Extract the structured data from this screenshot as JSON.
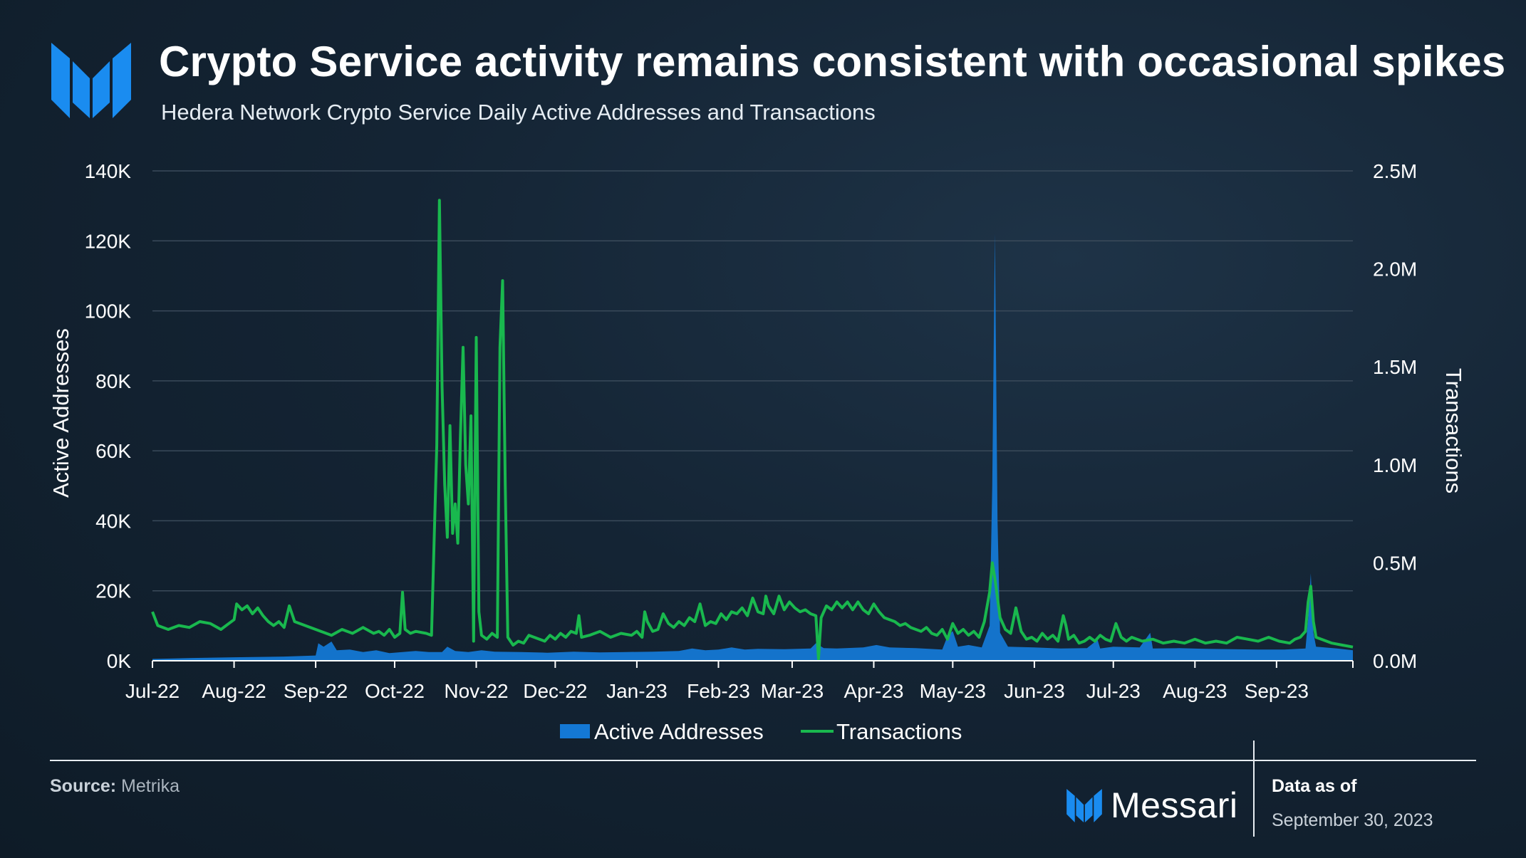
{
  "header": {
    "title": "Crypto Service activity remains consistent with occasional spikes",
    "subtitle": "Hedera Network Crypto Service Daily Active Addresses and Transactions"
  },
  "colors": {
    "active_addresses": "#1478d4",
    "transactions": "#19b84e",
    "grid": "#3a4a5a",
    "text": "#ffffff"
  },
  "chart_data": {
    "type": "area+line",
    "title": "Hedera Network Crypto Service Daily Active Addresses and Transactions",
    "xlabel": "",
    "ylabel_left": "Active Addresses",
    "ylabel_right": "Transactions",
    "ylim_left": [
      0,
      140000
    ],
    "ylim_right": [
      0,
      2500000
    ],
    "yticks_left": [
      "0K",
      "20K",
      "40K",
      "60K",
      "80K",
      "100K",
      "120K",
      "140K"
    ],
    "yticks_right": [
      "0.0M",
      "0.5M",
      "1.0M",
      "1.5M",
      "2.0M",
      "2.5M"
    ],
    "x_range_days": [
      0,
      456
    ],
    "x_tick_days": [
      0,
      31,
      62,
      92,
      123,
      153,
      184,
      215,
      243,
      274,
      304,
      335,
      365,
      396,
      427
    ],
    "x_tick_labels": [
      "Jul-22",
      "Aug-22",
      "Sep-22",
      "Oct-22",
      "Nov-22",
      "Dec-22",
      "Jan-23",
      "Feb-23",
      "Mar-23",
      "Apr-23",
      "May-23",
      "Jun-23",
      "Jul-23",
      "Aug-23",
      "Sep-23"
    ],
    "grid": true,
    "legend_position": "bottom-center",
    "series": [
      {
        "name": "Active Addresses",
        "kind": "area",
        "axis": "left",
        "points": [
          [
            0,
            500
          ],
          [
            15,
            800
          ],
          [
            31,
            1000
          ],
          [
            50,
            1200
          ],
          [
            62,
            1500
          ],
          [
            63,
            5000
          ],
          [
            65,
            4000
          ],
          [
            68,
            5500
          ],
          [
            70,
            3000
          ],
          [
            75,
            3200
          ],
          [
            80,
            2500
          ],
          [
            85,
            3000
          ],
          [
            90,
            2200
          ],
          [
            95,
            2500
          ],
          [
            100,
            2800
          ],
          [
            105,
            2500
          ],
          [
            110,
            2500
          ],
          [
            112,
            4000
          ],
          [
            115,
            2800
          ],
          [
            120,
            2500
          ],
          [
            125,
            3000
          ],
          [
            130,
            2600
          ],
          [
            140,
            2500
          ],
          [
            150,
            2300
          ],
          [
            160,
            2600
          ],
          [
            170,
            2400
          ],
          [
            180,
            2500
          ],
          [
            190,
            2600
          ],
          [
            200,
            2800
          ],
          [
            205,
            3500
          ],
          [
            210,
            3000
          ],
          [
            215,
            3200
          ],
          [
            220,
            3800
          ],
          [
            225,
            3200
          ],
          [
            230,
            3400
          ],
          [
            240,
            3300
          ],
          [
            250,
            3500
          ],
          [
            252,
            5000
          ],
          [
            255,
            3600
          ],
          [
            260,
            3500
          ],
          [
            270,
            3800
          ],
          [
            275,
            4500
          ],
          [
            280,
            3800
          ],
          [
            290,
            3600
          ],
          [
            300,
            3200
          ],
          [
            302,
            7000
          ],
          [
            304,
            8500
          ],
          [
            306,
            4000
          ],
          [
            310,
            4500
          ],
          [
            315,
            3800
          ],
          [
            318,
            10000
          ],
          [
            319,
            50000
          ],
          [
            320,
            122000
          ],
          [
            321,
            40000
          ],
          [
            322,
            8000
          ],
          [
            325,
            4000
          ],
          [
            335,
            3800
          ],
          [
            345,
            3500
          ],
          [
            355,
            3600
          ],
          [
            359,
            6000
          ],
          [
            360,
            3500
          ],
          [
            365,
            4000
          ],
          [
            375,
            3800
          ],
          [
            379,
            8000
          ],
          [
            380,
            3500
          ],
          [
            390,
            3600
          ],
          [
            400,
            3400
          ],
          [
            410,
            3300
          ],
          [
            420,
            3200
          ],
          [
            430,
            3200
          ],
          [
            438,
            3500
          ],
          [
            439,
            12000
          ],
          [
            440,
            25000
          ],
          [
            441,
            8000
          ],
          [
            442,
            4000
          ],
          [
            450,
            3500
          ],
          [
            456,
            3000
          ]
        ]
      },
      {
        "name": "Transactions",
        "kind": "line",
        "axis": "right",
        "points": [
          [
            0,
            250000
          ],
          [
            2,
            180000
          ],
          [
            6,
            160000
          ],
          [
            10,
            180000
          ],
          [
            14,
            170000
          ],
          [
            18,
            200000
          ],
          [
            22,
            190000
          ],
          [
            26,
            160000
          ],
          [
            29,
            190000
          ],
          [
            31,
            210000
          ],
          [
            32,
            290000
          ],
          [
            34,
            260000
          ],
          [
            36,
            280000
          ],
          [
            38,
            240000
          ],
          [
            40,
            270000
          ],
          [
            42,
            230000
          ],
          [
            44,
            200000
          ],
          [
            46,
            180000
          ],
          [
            48,
            200000
          ],
          [
            50,
            170000
          ],
          [
            52,
            280000
          ],
          [
            54,
            200000
          ],
          [
            56,
            190000
          ],
          [
            60,
            170000
          ],
          [
            64,
            150000
          ],
          [
            68,
            130000
          ],
          [
            72,
            160000
          ],
          [
            76,
            140000
          ],
          [
            80,
            170000
          ],
          [
            84,
            140000
          ],
          [
            86,
            150000
          ],
          [
            88,
            130000
          ],
          [
            90,
            160000
          ],
          [
            92,
            120000
          ],
          [
            94,
            140000
          ],
          [
            95,
            350000
          ],
          [
            96,
            160000
          ],
          [
            98,
            140000
          ],
          [
            100,
            150000
          ],
          [
            104,
            140000
          ],
          [
            106,
            130000
          ],
          [
            108,
            1100000
          ],
          [
            109,
            2350000
          ],
          [
            110,
            1400000
          ],
          [
            111,
            900000
          ],
          [
            112,
            630000
          ],
          [
            113,
            1200000
          ],
          [
            114,
            650000
          ],
          [
            115,
            800000
          ],
          [
            116,
            600000
          ],
          [
            117,
            1150000
          ],
          [
            118,
            1600000
          ],
          [
            119,
            1000000
          ],
          [
            120,
            800000
          ],
          [
            121,
            1250000
          ],
          [
            122,
            100000
          ],
          [
            123,
            1650000
          ],
          [
            124,
            250000
          ],
          [
            125,
            130000
          ],
          [
            127,
            110000
          ],
          [
            129,
            140000
          ],
          [
            131,
            120000
          ],
          [
            132,
            1600000
          ],
          [
            133,
            1940000
          ],
          [
            134,
            900000
          ],
          [
            135,
            120000
          ],
          [
            137,
            80000
          ],
          [
            139,
            100000
          ],
          [
            141,
            90000
          ],
          [
            143,
            130000
          ],
          [
            145,
            120000
          ],
          [
            147,
            110000
          ],
          [
            149,
            100000
          ],
          [
            151,
            130000
          ],
          [
            153,
            110000
          ],
          [
            155,
            140000
          ],
          [
            157,
            120000
          ],
          [
            159,
            150000
          ],
          [
            161,
            140000
          ],
          [
            162,
            230000
          ],
          [
            163,
            120000
          ],
          [
            166,
            130000
          ],
          [
            170,
            150000
          ],
          [
            174,
            120000
          ],
          [
            178,
            140000
          ],
          [
            182,
            130000
          ],
          [
            184,
            150000
          ],
          [
            186,
            120000
          ],
          [
            187,
            250000
          ],
          [
            188,
            200000
          ],
          [
            190,
            150000
          ],
          [
            192,
            160000
          ],
          [
            194,
            240000
          ],
          [
            196,
            190000
          ],
          [
            198,
            170000
          ],
          [
            200,
            200000
          ],
          [
            202,
            180000
          ],
          [
            204,
            220000
          ],
          [
            206,
            200000
          ],
          [
            208,
            290000
          ],
          [
            210,
            180000
          ],
          [
            212,
            200000
          ],
          [
            214,
            190000
          ],
          [
            216,
            240000
          ],
          [
            218,
            210000
          ],
          [
            220,
            250000
          ],
          [
            222,
            240000
          ],
          [
            224,
            270000
          ],
          [
            226,
            230000
          ],
          [
            228,
            320000
          ],
          [
            230,
            250000
          ],
          [
            232,
            240000
          ],
          [
            233,
            330000
          ],
          [
            234,
            280000
          ],
          [
            236,
            240000
          ],
          [
            238,
            330000
          ],
          [
            240,
            260000
          ],
          [
            242,
            300000
          ],
          [
            244,
            270000
          ],
          [
            246,
            250000
          ],
          [
            248,
            260000
          ],
          [
            250,
            240000
          ],
          [
            252,
            230000
          ],
          [
            253,
            10000
          ],
          [
            254,
            220000
          ],
          [
            256,
            280000
          ],
          [
            258,
            260000
          ],
          [
            260,
            300000
          ],
          [
            262,
            270000
          ],
          [
            264,
            300000
          ],
          [
            266,
            260000
          ],
          [
            268,
            300000
          ],
          [
            270,
            260000
          ],
          [
            272,
            240000
          ],
          [
            274,
            290000
          ],
          [
            276,
            250000
          ],
          [
            278,
            220000
          ],
          [
            280,
            210000
          ],
          [
            282,
            200000
          ],
          [
            284,
            180000
          ],
          [
            286,
            190000
          ],
          [
            288,
            170000
          ],
          [
            290,
            160000
          ],
          [
            292,
            150000
          ],
          [
            294,
            170000
          ],
          [
            296,
            140000
          ],
          [
            298,
            130000
          ],
          [
            300,
            160000
          ],
          [
            302,
            110000
          ],
          [
            304,
            190000
          ],
          [
            306,
            140000
          ],
          [
            308,
            160000
          ],
          [
            310,
            130000
          ],
          [
            312,
            150000
          ],
          [
            314,
            120000
          ],
          [
            316,
            200000
          ],
          [
            318,
            350000
          ],
          [
            319,
            500000
          ],
          [
            320,
            420000
          ],
          [
            322,
            220000
          ],
          [
            324,
            160000
          ],
          [
            326,
            140000
          ],
          [
            328,
            270000
          ],
          [
            330,
            150000
          ],
          [
            332,
            110000
          ],
          [
            334,
            120000
          ],
          [
            336,
            100000
          ],
          [
            338,
            140000
          ],
          [
            340,
            110000
          ],
          [
            342,
            130000
          ],
          [
            344,
            100000
          ],
          [
            346,
            230000
          ],
          [
            347,
            180000
          ],
          [
            348,
            110000
          ],
          [
            350,
            130000
          ],
          [
            352,
            90000
          ],
          [
            354,
            100000
          ],
          [
            356,
            120000
          ],
          [
            358,
            100000
          ],
          [
            360,
            130000
          ],
          [
            362,
            110000
          ],
          [
            364,
            100000
          ],
          [
            366,
            190000
          ],
          [
            368,
            120000
          ],
          [
            370,
            100000
          ],
          [
            372,
            120000
          ],
          [
            374,
            110000
          ],
          [
            376,
            100000
          ],
          [
            380,
            110000
          ],
          [
            384,
            90000
          ],
          [
            388,
            100000
          ],
          [
            392,
            90000
          ],
          [
            396,
            110000
          ],
          [
            400,
            90000
          ],
          [
            404,
            100000
          ],
          [
            408,
            90000
          ],
          [
            412,
            120000
          ],
          [
            416,
            110000
          ],
          [
            420,
            100000
          ],
          [
            424,
            120000
          ],
          [
            428,
            100000
          ],
          [
            432,
            90000
          ],
          [
            434,
            110000
          ],
          [
            436,
            120000
          ],
          [
            438,
            150000
          ],
          [
            439,
            300000
          ],
          [
            440,
            380000
          ],
          [
            441,
            200000
          ],
          [
            442,
            120000
          ],
          [
            444,
            110000
          ],
          [
            448,
            90000
          ],
          [
            452,
            80000
          ],
          [
            456,
            70000
          ]
        ]
      }
    ]
  },
  "footer": {
    "source_label": "Source:",
    "source_value": " Metrika",
    "brand": "Messari",
    "as_of_label": "Data as of",
    "as_of_date": "September 30, 2023"
  }
}
